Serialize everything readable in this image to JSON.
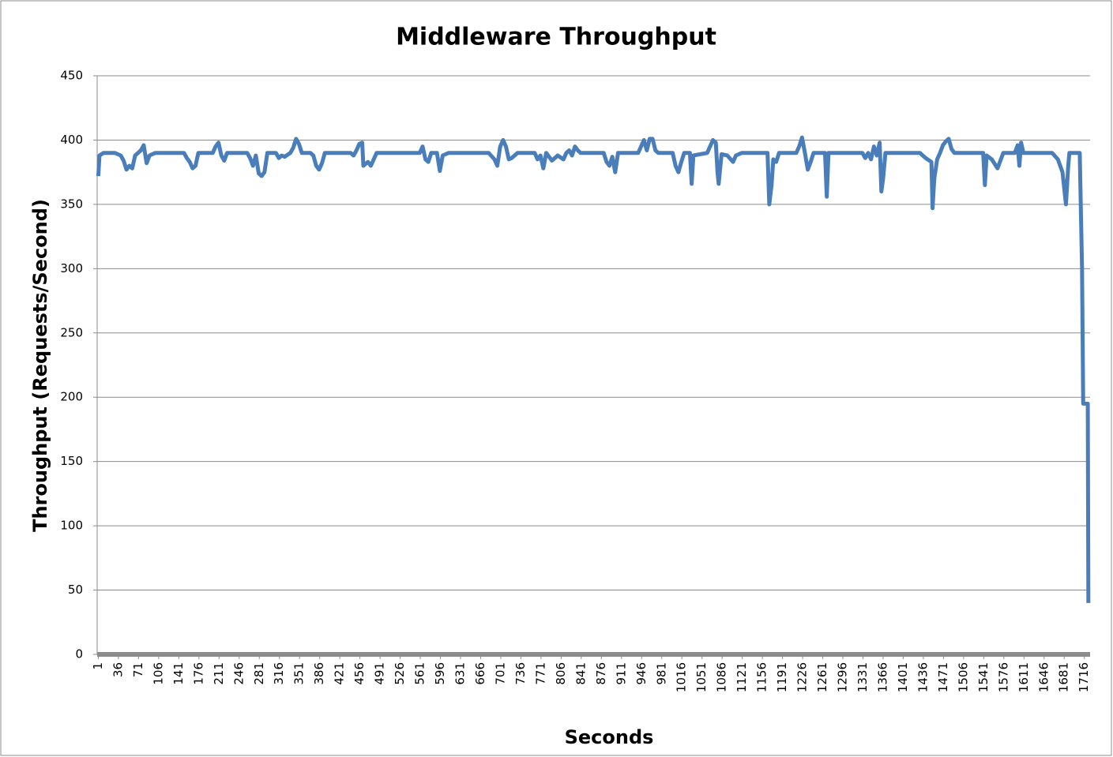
{
  "chart_data": {
    "type": "line",
    "title": "Middleware Throughput",
    "x_label": "Seconds",
    "y_label": "Throughput (Requests/Second)",
    "xlim": [
      -1,
      1726
    ],
    "xticks": [
      1,
      36,
      71,
      106,
      141,
      176,
      211,
      246,
      281,
      316,
      351,
      386,
      421,
      456,
      491,
      526,
      561,
      596,
      631,
      666,
      701,
      736,
      771,
      806,
      841,
      876,
      911,
      946,
      981,
      1016,
      1051,
      1086,
      1121,
      1156,
      1191,
      1226,
      1261,
      1296,
      1331,
      1366,
      1401,
      1436,
      1471,
      1506,
      1541,
      1576,
      1611,
      1646,
      1681,
      1716
    ],
    "ylim": [
      0,
      450
    ],
    "yticks": [
      0,
      50,
      100,
      150,
      200,
      250,
      300,
      350,
      400,
      450
    ],
    "grid": true,
    "series": [
      {
        "name": "Throughput",
        "color": "#4a7ebb",
        "x": [
          1,
          3,
          10,
          30,
          40,
          45,
          50,
          55,
          60,
          65,
          75,
          80,
          85,
          90,
          100,
          150,
          155,
          160,
          165,
          170,
          175,
          200,
          205,
          210,
          215,
          220,
          225,
          260,
          265,
          270,
          275,
          280,
          285,
          290,
          295,
          310,
          315,
          320,
          325,
          335,
          340,
          345,
          350,
          355,
          370,
          375,
          380,
          385,
          390,
          395,
          440,
          445,
          450,
          455,
          460,
          462,
          470,
          475,
          485,
          560,
          565,
          570,
          575,
          580,
          590,
          595,
          600,
          610,
          680,
          690,
          695,
          700,
          705,
          710,
          715,
          720,
          730,
          760,
          765,
          770,
          775,
          780,
          790,
          800,
          810,
          815,
          820,
          825,
          830,
          835,
          840,
          880,
          885,
          890,
          895,
          900,
          905,
          940,
          945,
          950,
          955,
          960,
          965,
          970,
          975,
          1000,
          1005,
          1010,
          1015,
          1020,
          1030,
          1033,
          1036,
          1060,
          1065,
          1070,
          1075,
          1078,
          1080,
          1085,
          1095,
          1105,
          1110,
          1120,
          1165,
          1168,
          1172,
          1175,
          1180,
          1185,
          1215,
          1220,
          1225,
          1230,
          1235,
          1240,
          1245,
          1265,
          1268,
          1271,
          1330,
          1335,
          1340,
          1345,
          1350,
          1355,
          1360,
          1363,
          1366,
          1370,
          1430,
          1440,
          1450,
          1452,
          1455,
          1460,
          1465,
          1470,
          1475,
          1480,
          1485,
          1490,
          1540,
          1543,
          1546,
          1555,
          1565,
          1575,
          1595,
          1600,
          1603,
          1606,
          1610,
          1660,
          1670,
          1678,
          1684,
          1688,
          1690,
          1708,
          1712,
          1714,
          1722,
          1723
        ],
        "values": [
          372,
          388,
          390,
          390,
          388,
          384,
          377,
          380,
          378,
          388,
          392,
          396,
          382,
          388,
          390,
          390,
          386,
          383,
          378,
          380,
          390,
          390,
          395,
          398,
          388,
          384,
          390,
          390,
          386,
          380,
          388,
          374,
          372,
          375,
          390,
          390,
          386,
          388,
          387,
          390,
          394,
          401,
          397,
          390,
          390,
          388,
          380,
          377,
          382,
          390,
          390,
          388,
          392,
          397,
          398,
          380,
          383,
          380,
          390,
          390,
          395,
          385,
          383,
          390,
          390,
          376,
          388,
          390,
          390,
          385,
          380,
          395,
          400,
          395,
          385,
          386,
          390,
          390,
          385,
          388,
          378,
          390,
          384,
          388,
          385,
          390,
          392,
          388,
          395,
          392,
          390,
          390,
          383,
          380,
          387,
          375,
          390,
          390,
          395,
          400,
          392,
          401,
          401,
          392,
          390,
          390,
          380,
          375,
          383,
          390,
          390,
          366,
          388,
          390,
          395,
          400,
          398,
          375,
          366,
          389,
          388,
          383,
          388,
          390,
          390,
          350,
          365,
          385,
          383,
          390,
          390,
          395,
          402,
          390,
          377,
          383,
          390,
          390,
          356,
          390,
          390,
          386,
          390,
          385,
          395,
          388,
          398,
          360,
          370,
          390,
          390,
          386,
          383,
          347,
          370,
          385,
          390,
          396,
          399,
          401,
          393,
          390,
          390,
          365,
          388,
          385,
          378,
          390,
          390,
          396,
          380,
          398,
          390,
          390,
          385,
          375,
          350,
          380,
          390,
          390,
          300,
          195,
          195,
          40
        ]
      }
    ]
  }
}
